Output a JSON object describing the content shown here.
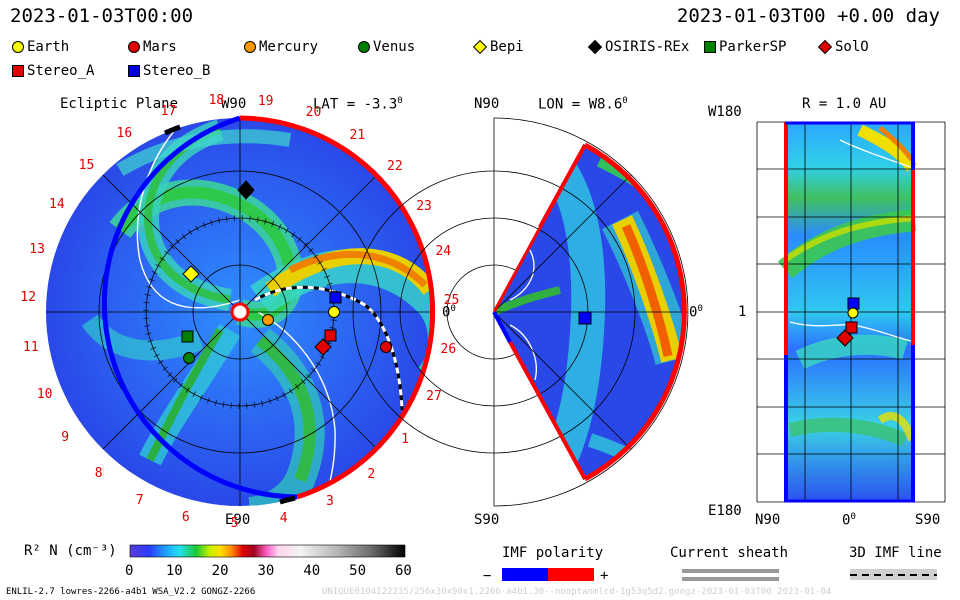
{
  "header": {
    "left_time": "2023-01-03T00:00",
    "right_time": "2023-01-03T00 +0.00 day"
  },
  "legend": [
    {
      "label": "Earth",
      "shape": "circle",
      "color": "#ffff00"
    },
    {
      "label": "Mars",
      "shape": "circle",
      "color": "#e00000"
    },
    {
      "label": "Mercury",
      "shape": "circle",
      "color": "#ff9900"
    },
    {
      "label": "Venus",
      "shape": "circle",
      "color": "#008000"
    },
    {
      "label": "Bepi",
      "shape": "diamond",
      "color": "#ffff00"
    },
    {
      "label": "OSIRIS-REx",
      "shape": "diamond",
      "color": "#000000"
    },
    {
      "label": "ParkerSP",
      "shape": "square",
      "color": "#008000"
    },
    {
      "label": "SolO",
      "shape": "diamond",
      "color": "#e00000"
    },
    {
      "label": "Stereo_A",
      "shape": "square",
      "color": "#e00000"
    },
    {
      "label": "Stereo_B",
      "shape": "square",
      "color": "#0000e0"
    }
  ],
  "ecliptic": {
    "title": "Ecliptic Plane",
    "top_label": "W90",
    "bottom_label": "E90",
    "right_label": "0",
    "right_label_deg": "0",
    "lat_label": "LAT = -3.3",
    "lat_deg": "0",
    "carrington_numbers": [
      "19",
      "20",
      "21",
      "22",
      "23",
      "24",
      "25",
      "26",
      "27",
      "1",
      "2",
      "3",
      "4",
      "5",
      "6",
      "7",
      "8",
      "9",
      "10",
      "11",
      "12",
      "13",
      "14",
      "15",
      "16",
      "17",
      "18"
    ]
  },
  "meridional": {
    "top_label": "N90",
    "bottom_label": "S90",
    "right_label": "0",
    "right_label_deg": "0",
    "lon_label": "LON = W8.6",
    "lon_deg": "0"
  },
  "radial": {
    "title": "R = 1.0 AU",
    "top_left": "W180",
    "bottom_left": "E180",
    "mid_left": "1",
    "bottom_ticks": [
      "N90",
      "0",
      "S90"
    ],
    "bottom_mid_deg": "0"
  },
  "colorbar": {
    "label": "R² N (cm⁻³)",
    "ticks": [
      "0",
      "10",
      "20",
      "30",
      "40",
      "50",
      "60"
    ]
  },
  "imf_polarity": {
    "title": "IMF polarity",
    "minus": "−",
    "plus": "+",
    "neg_color": "#0000ff",
    "pos_color": "#ff0000"
  },
  "current_sheath": {
    "title": "Current sheath"
  },
  "imf_line": {
    "title": "3D IMF line"
  },
  "footer": {
    "left": "ENLIL-2.7 lowres-2266-a4b1 WSA_V2.2 GONGZ-2266",
    "right": "UNIQUE0104122235/256x30x90x1.2266-a4b1.30--nooptanmlcd-1g53q5d2.gongz-2023-01-03T00    2023-01-04"
  }
}
